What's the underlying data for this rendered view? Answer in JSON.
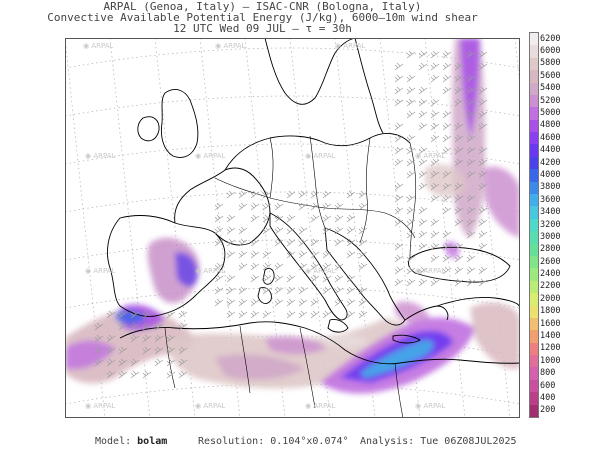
{
  "header": {
    "line1": "ARPAL (Genoa, Italy)  –  ISAC-CNR (Bologna, Italy)",
    "line2": "Convective Available Potential Energy (J/kg), 6000–10m wind shear",
    "line3": "12 UTC Wed 09 JUL  –  τ = 30h"
  },
  "watermark": "ARPAL",
  "colorbar": {
    "levels": [
      200,
      400,
      600,
      800,
      1000,
      1200,
      1400,
      1600,
      1800,
      2000,
      2200,
      2400,
      2600,
      2800,
      3000,
      3200,
      3400,
      3600,
      3800,
      4000,
      4200,
      4400,
      4600,
      4800,
      5000,
      5200,
      5400,
      5600,
      5800,
      6000,
      6200
    ],
    "labels": [
      "6200",
      "6000",
      "5800",
      "5600",
      "5400",
      "5200",
      "5000",
      "4800",
      "4600",
      "4400",
      "4200",
      "4000",
      "3800",
      "3600",
      "3400",
      "3200",
      "3000",
      "2800",
      "2600",
      "2400",
      "2200",
      "2000",
      "1800",
      "1600",
      "1400",
      "1200",
      "1000",
      "800",
      "600",
      "400",
      "200"
    ],
    "colors": [
      "#f2eeee",
      "#e8dcdc",
      "#dec8c8",
      "#d8b8c0",
      "#d0a8c8",
      "#cc90d0",
      "#c070e0",
      "#a850e8",
      "#8a40f0",
      "#6a38f0",
      "#4a44e8",
      "#3a66e8",
      "#3a8ae8",
      "#40aee8",
      "#48c8e0",
      "#50d8c8",
      "#58dcb0",
      "#66e098",
      "#80e488",
      "#9ee880",
      "#bcec78",
      "#d8ee70",
      "#ece070",
      "#f0c070",
      "#f0a070",
      "#ec8080",
      "#e07098",
      "#d460b0",
      "#c850a0",
      "#b84088",
      "#a03070"
    ]
  },
  "footer": {
    "model_label": "Model:",
    "model_value": "bolam",
    "resolution_label": "Resolution:",
    "resolution_value": "0.104°x0.074°",
    "analysis_label": "Analysis:",
    "analysis_value": "Tue 06Z08JUL2025"
  }
}
